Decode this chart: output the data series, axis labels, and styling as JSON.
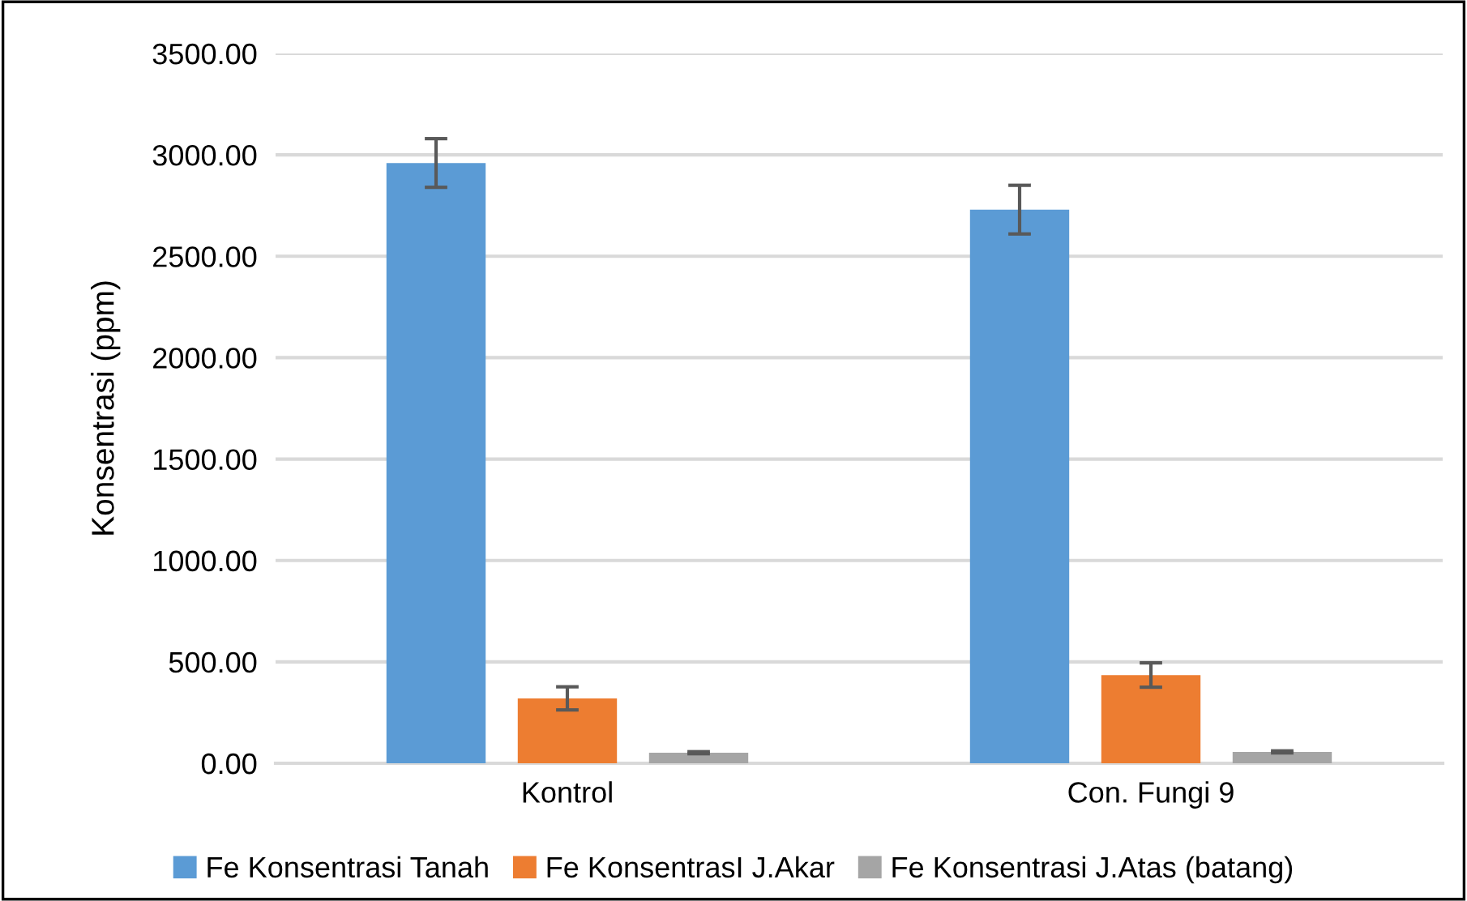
{
  "chart_data": {
    "type": "bar",
    "ylabel": "Konsentrasi (ppm)",
    "categories": [
      "Kontrol",
      "Con. Fungi 9"
    ],
    "series": [
      {
        "name": "Fe Konsentrasi Tanah",
        "color": "#5b9bd5",
        "values": [
          2960,
          2730
        ],
        "errors": [
          120,
          120
        ]
      },
      {
        "name": "Fe KonsentrasI J.Akar",
        "color": "#ed7d31",
        "values": [
          320,
          435
        ],
        "errors": [
          57,
          60
        ]
      },
      {
        "name": "Fe Konsentrasi J.Atas (batang)",
        "color": "#a5a5a5",
        "values": [
          52,
          56
        ],
        "errors": [
          5,
          5
        ]
      }
    ],
    "ylim": [
      0,
      3500
    ],
    "yticks": [
      {
        "value": 0,
        "label": "0.00"
      },
      {
        "value": 500,
        "label": "500.00"
      },
      {
        "value": 1000,
        "label": "1000.00"
      },
      {
        "value": 1500,
        "label": "1500.00"
      },
      {
        "value": 2000,
        "label": "2000.00"
      },
      {
        "value": 2500,
        "label": "2500.00"
      },
      {
        "value": 3000,
        "label": "3000.00"
      },
      {
        "value": 3500,
        "label": "3500.00"
      }
    ],
    "grid": "y",
    "legend": "bottom"
  }
}
